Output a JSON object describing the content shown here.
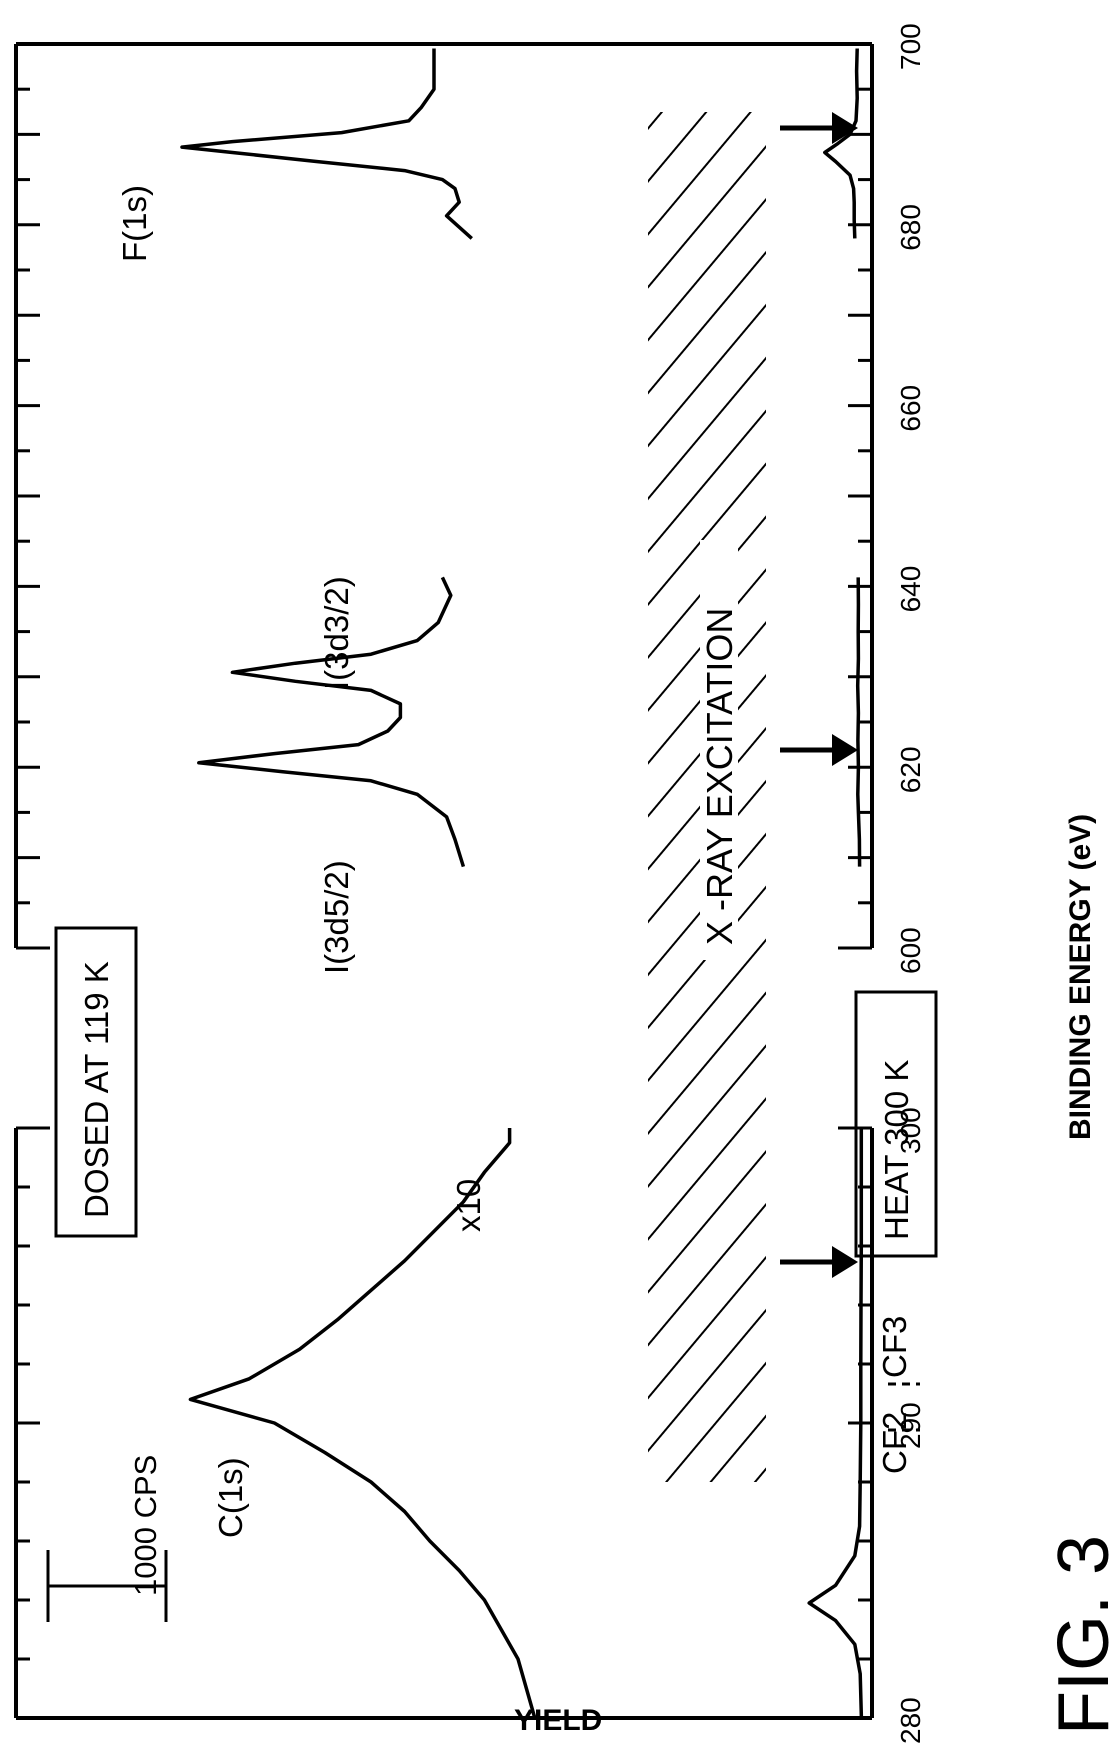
{
  "figure_label": "FIG. 3",
  "chart_data": {
    "type": "line",
    "xlabel": "BINDING ENERGY (eV)",
    "ylabel": "YIELD",
    "x_axis_break": {
      "from": 300,
      "to": 600
    },
    "segments": [
      {
        "xlim": [
          280,
          300
        ],
        "ticks": [
          280,
          290,
          300
        ]
      },
      {
        "xlim": [
          600,
          700
        ],
        "ticks": [
          600,
          620,
          640,
          660,
          680,
          700
        ]
      }
    ],
    "scale_bar": "1000 CPS",
    "boxed_labels": {
      "dosed": "DOSED AT 119 K",
      "heat": "HEAT 300 K"
    },
    "xray_label": "X -RAY EXCITATION",
    "magnification_label": "x10",
    "peak_labels": {
      "c1s": "C(1s)",
      "i_5_2": "I(3d5/2)",
      "i_3_2": "I(3d3/2)",
      "f1s": "F(1s)",
      "cf2": "CF2",
      "cf3": "CF3"
    },
    "series": [
      {
        "id": "dosed_c1s",
        "points": [
          [
            280,
            0.06
          ],
          [
            281,
            0.08
          ],
          [
            282,
            0.1
          ],
          [
            283,
            0.14
          ],
          [
            284,
            0.18
          ],
          [
            285,
            0.24
          ],
          [
            286,
            0.31
          ],
          [
            287,
            0.37
          ],
          [
            288,
            0.45
          ],
          [
            289,
            0.56
          ],
          [
            290,
            0.68
          ],
          [
            290.8,
            0.88
          ],
          [
            291.5,
            0.74
          ],
          [
            292.5,
            0.62
          ],
          [
            293.5,
            0.53
          ],
          [
            294.5,
            0.45
          ],
          [
            295.5,
            0.37
          ],
          [
            296.5,
            0.3
          ],
          [
            297.5,
            0.23
          ],
          [
            298.5,
            0.18
          ],
          [
            299.5,
            0.12
          ],
          [
            300,
            0.12
          ]
        ]
      },
      {
        "id": "dosed_i3d",
        "points": [
          [
            609,
            0.23
          ],
          [
            612,
            0.25
          ],
          [
            614.5,
            0.27
          ],
          [
            617,
            0.34
          ],
          [
            618.5,
            0.45
          ],
          [
            619.5,
            0.66
          ],
          [
            620.5,
            0.86
          ],
          [
            621.5,
            0.68
          ],
          [
            622.5,
            0.48
          ],
          [
            624,
            0.41
          ],
          [
            625.5,
            0.38
          ],
          [
            627,
            0.38
          ],
          [
            628.5,
            0.45
          ],
          [
            629.5,
            0.63
          ],
          [
            630.5,
            0.78
          ],
          [
            631.5,
            0.63
          ],
          [
            632.5,
            0.45
          ],
          [
            634,
            0.34
          ],
          [
            636,
            0.29
          ],
          [
            639,
            0.26
          ],
          [
            641,
            0.28
          ]
        ]
      },
      {
        "id": "dosed_f1s",
        "points": [
          [
            678.5,
            0.21
          ],
          [
            681,
            0.27
          ],
          [
            682.5,
            0.24
          ],
          [
            684,
            0.25
          ],
          [
            685,
            0.28
          ],
          [
            686,
            0.37
          ],
          [
            687,
            0.58
          ],
          [
            688,
            0.78
          ],
          [
            688.6,
            0.9
          ],
          [
            689.2,
            0.78
          ],
          [
            690.2,
            0.52
          ],
          [
            691.5,
            0.36
          ],
          [
            693,
            0.33
          ],
          [
            695,
            0.3
          ],
          [
            697.5,
            0.3
          ],
          [
            699.5,
            0.3
          ]
        ]
      },
      {
        "id": "heated_c1s",
        "points": [
          [
            280,
            0.005
          ],
          [
            281.5,
            0.015
          ],
          [
            282.5,
            0.06
          ],
          [
            283.3,
            0.22
          ],
          [
            283.9,
            0.44
          ],
          [
            284.5,
            0.22
          ],
          [
            285.5,
            0.06
          ],
          [
            286.5,
            0.02
          ],
          [
            288,
            0.015
          ],
          [
            290,
            0.01
          ],
          [
            292,
            0.01
          ],
          [
            294,
            0.008
          ],
          [
            296,
            0.006
          ],
          [
            298,
            0.006
          ],
          [
            300,
            0.006
          ]
        ]
      },
      {
        "id": "heated_i3d",
        "points": [
          [
            609,
            0.02
          ],
          [
            612,
            0.022
          ],
          [
            615,
            0.03
          ],
          [
            617,
            0.035
          ],
          [
            620,
            0.03
          ],
          [
            623,
            0.034
          ],
          [
            626,
            0.03
          ],
          [
            629,
            0.036
          ],
          [
            632,
            0.03
          ],
          [
            635,
            0.032
          ],
          [
            638,
            0.03
          ],
          [
            641,
            0.032
          ]
        ]
      },
      {
        "id": "heated_f1s",
        "points": [
          [
            678.5,
            0.06
          ],
          [
            680.5,
            0.065
          ],
          [
            682.5,
            0.065
          ],
          [
            684,
            0.07
          ],
          [
            685.5,
            0.1
          ],
          [
            687,
            0.22
          ],
          [
            688,
            0.31
          ],
          [
            689,
            0.2
          ],
          [
            690,
            0.1
          ],
          [
            691.5,
            0.05
          ],
          [
            694,
            0.04
          ],
          [
            697,
            0.045
          ],
          [
            699.5,
            0.04
          ]
        ]
      }
    ]
  }
}
